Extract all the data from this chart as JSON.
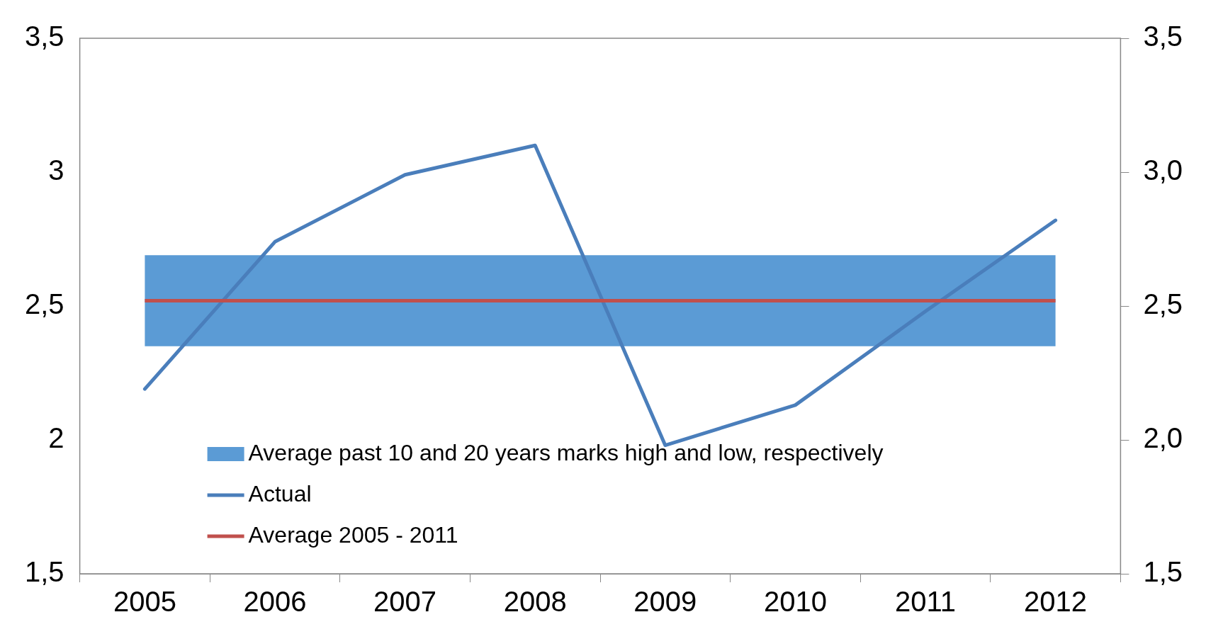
{
  "chart_data": {
    "type": "line",
    "categories": [
      "2005",
      "2006",
      "2007",
      "2008",
      "2009",
      "2010",
      "2011",
      "2012"
    ],
    "series": [
      {
        "name": "Actual",
        "color": "#4a7ebb",
        "values": [
          2.19,
          2.74,
          2.99,
          3.1,
          1.98,
          2.13,
          2.48,
          2.82
        ]
      }
    ],
    "ylim": [
      1.5,
      3.5
    ],
    "yticks": [
      {
        "value": 1.5,
        "label": "1,5"
      },
      {
        "value": 2,
        "label": "2"
      },
      {
        "value": 2.5,
        "label": "2,5"
      },
      {
        "value": 3,
        "label": "3"
      },
      {
        "value": 3.5,
        "label": "3,5"
      }
    ],
    "y2lim": [
      1.5,
      3.5
    ],
    "y2ticks": [
      {
        "value": 1.5,
        "label": "1,5"
      },
      {
        "value": 2,
        "label": "2,0"
      },
      {
        "value": 2.5,
        "label": "2,5"
      },
      {
        "value": 3,
        "label": "3,0"
      },
      {
        "value": 3.5,
        "label": "3,5"
      }
    ],
    "bands": [
      {
        "axis": "y",
        "from": 2.35,
        "to": 2.69,
        "label": "Average past 10 and 20 years marks high and low, respectively",
        "color": "#5b9bd5"
      }
    ],
    "ref_lines": [
      {
        "axis": "y",
        "value": 2.52,
        "label": "Average 2005 - 2011",
        "color": "#c0504d"
      }
    ],
    "legend": "bottom left",
    "grid": false,
    "marker": "none"
  }
}
